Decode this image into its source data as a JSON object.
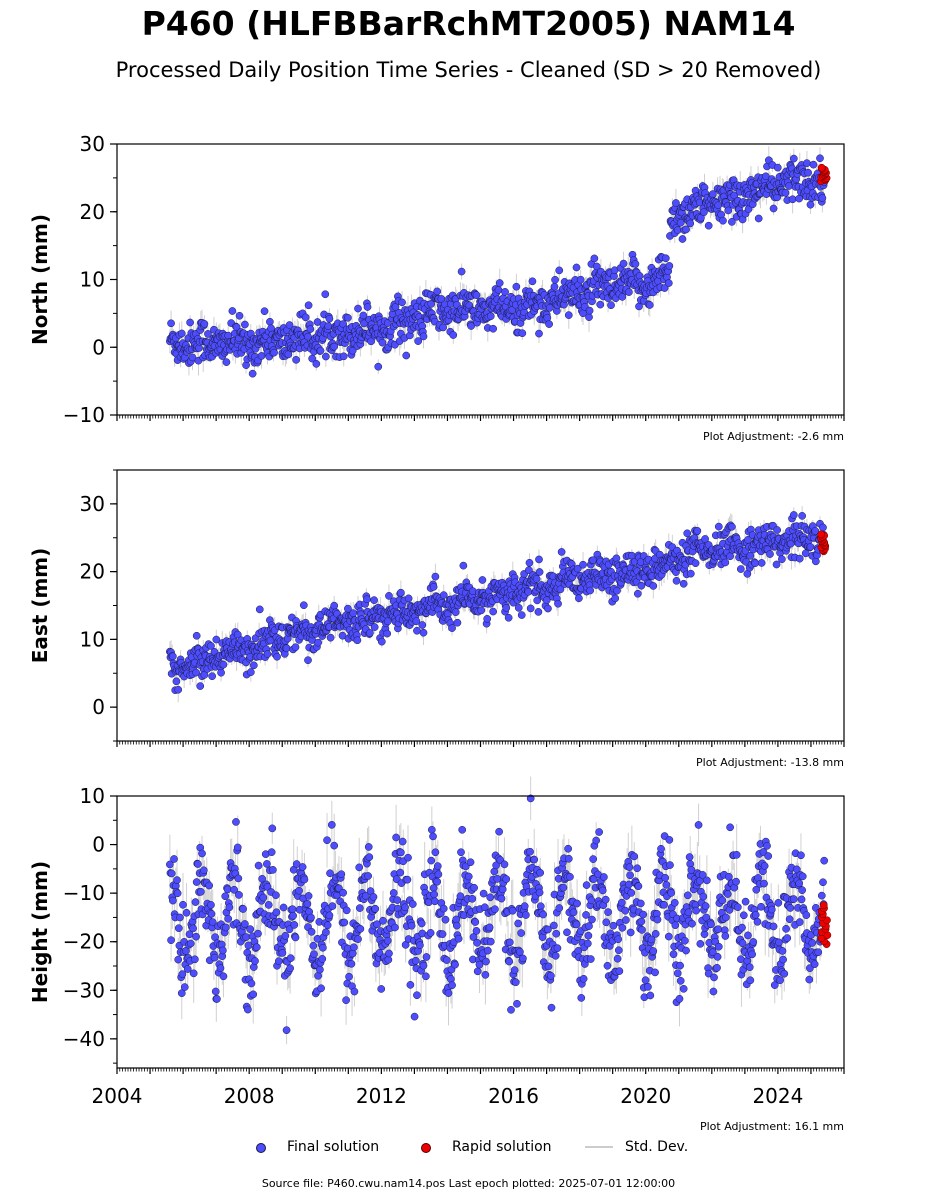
{
  "title": "P460 (HLFBBarRchMT2005) NAM14",
  "subtitle": "Processed Daily Position Time Series - Cleaned (SD > 20 Removed)",
  "legend": {
    "final": "Final solution",
    "rapid": "Rapid solution",
    "sd": "Std. Dev."
  },
  "footer": "Source file: P460.cwu.nam14.pos  Last epoch plotted: 2025-07-01 12:00:00",
  "colors": {
    "final": "#4d4dff",
    "rapid": "#ee0000",
    "sd": "#bdbdbd",
    "edge": "#1a1a40"
  },
  "chart_data": [
    {
      "type": "scatter",
      "ylabel": "North (mm)",
      "xlim": [
        2004,
        2026
      ],
      "ylim": [
        -10,
        30
      ],
      "yticks": [
        -10,
        0,
        10,
        20,
        30
      ],
      "ytick_labels": [
        "−10",
        "0",
        "10",
        "20",
        "30"
      ],
      "xtick_labels_shown": false,
      "adjustment": "Plot Adjustment: -2.6 mm",
      "trend_knots": [
        [
          2005.6,
          0.8
        ],
        [
          2008,
          0.5
        ],
        [
          2010,
          1.5
        ],
        [
          2012,
          3.0
        ],
        [
          2014,
          5.5
        ],
        [
          2016,
          5.5
        ],
        [
          2018,
          8.0
        ],
        [
          2020,
          9.5
        ],
        [
          2020.7,
          10.5
        ],
        [
          2020.75,
          19.5
        ],
        [
          2022,
          21.0
        ],
        [
          2024,
          24.0
        ],
        [
          2025.4,
          25.0
        ]
      ],
      "noise_sd": 1.6,
      "seasonal_amp": 0.6,
      "rapid": {
        "x": [
          2025.3,
          2025.5
        ],
        "y": [
          24.5,
          26.5
        ]
      }
    },
    {
      "type": "scatter",
      "ylabel": "East (mm)",
      "xlim": [
        2004,
        2026
      ],
      "ylim": [
        -5,
        35
      ],
      "yticks": [
        0,
        10,
        20,
        30
      ],
      "ytick_labels": [
        "0",
        "10",
        "20",
        "30"
      ],
      "xtick_labels_shown": false,
      "adjustment": "Plot Adjustment: -13.8 mm",
      "trend_knots": [
        [
          2005.6,
          5.5
        ],
        [
          2008,
          9.0
        ],
        [
          2010,
          11.5
        ],
        [
          2012,
          13.5
        ],
        [
          2014,
          15.0
        ],
        [
          2016,
          17.0
        ],
        [
          2018,
          18.5
        ],
        [
          2020,
          20.5
        ],
        [
          2022,
          23.0
        ],
        [
          2024,
          24.5
        ],
        [
          2025.4,
          25.0
        ]
      ],
      "noise_sd": 1.4,
      "seasonal_amp": 0.8,
      "rapid": {
        "x": [
          2025.3,
          2025.5
        ],
        "y": [
          23.0,
          25.5
        ]
      }
    },
    {
      "type": "scatter",
      "ylabel": "Height (mm)",
      "xlim": [
        2004,
        2026
      ],
      "ylim": [
        -46,
        10
      ],
      "yticks": [
        -40,
        -30,
        -20,
        -10,
        0,
        10
      ],
      "ytick_labels": [
        "−40",
        "−30",
        "−20",
        "−10",
        "0",
        "10"
      ],
      "xticks": [
        2004,
        2008,
        2012,
        2016,
        2020,
        2024
      ],
      "xtick_labels": [
        "2004",
        "2008",
        "2012",
        "2016",
        "2020",
        "2024"
      ],
      "xtick_labels_shown": true,
      "adjustment": "Plot Adjustment: 16.1 mm",
      "trend_knots": [
        [
          2005.6,
          -15.0
        ],
        [
          2025.4,
          -15.0
        ]
      ],
      "noise_sd": 4.8,
      "seasonal_amp": 8.0,
      "rapid": {
        "x": [
          2025.3,
          2025.5
        ],
        "y": [
          -20.5,
          -12.5
        ]
      }
    }
  ]
}
